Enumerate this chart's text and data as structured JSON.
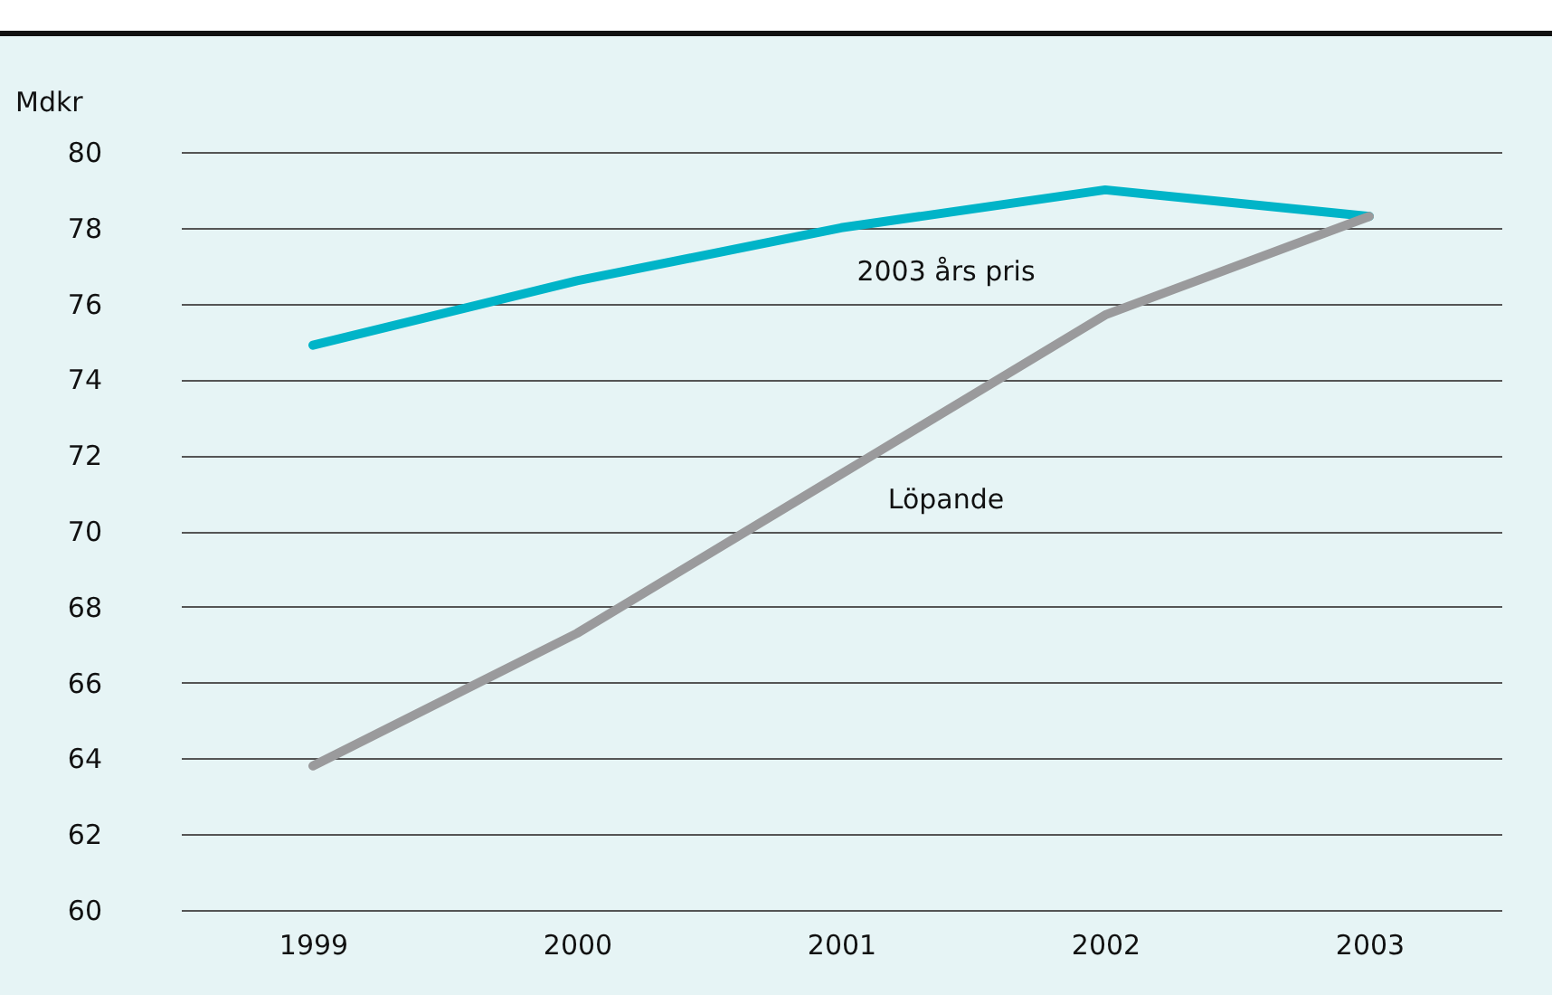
{
  "chart_data": {
    "type": "line",
    "ylabel": "Mdkr",
    "categories": [
      "1999",
      "2000",
      "2001",
      "2002",
      "2003"
    ],
    "series": [
      {
        "name": "2003 års pris",
        "color": "#00b4c8",
        "values": [
          74.9,
          76.6,
          78.0,
          79.0,
          78.3
        ]
      },
      {
        "name": "Löpande",
        "color": "#9a9a9c",
        "values": [
          63.8,
          67.3,
          71.5,
          75.7,
          78.3
        ]
      }
    ],
    "ylim": [
      60,
      80
    ],
    "yticks": [
      60,
      62,
      64,
      66,
      68,
      70,
      72,
      74,
      76,
      78,
      80
    ],
    "grid": "y",
    "legend": false,
    "marker": "none",
    "line_style": "solid"
  }
}
